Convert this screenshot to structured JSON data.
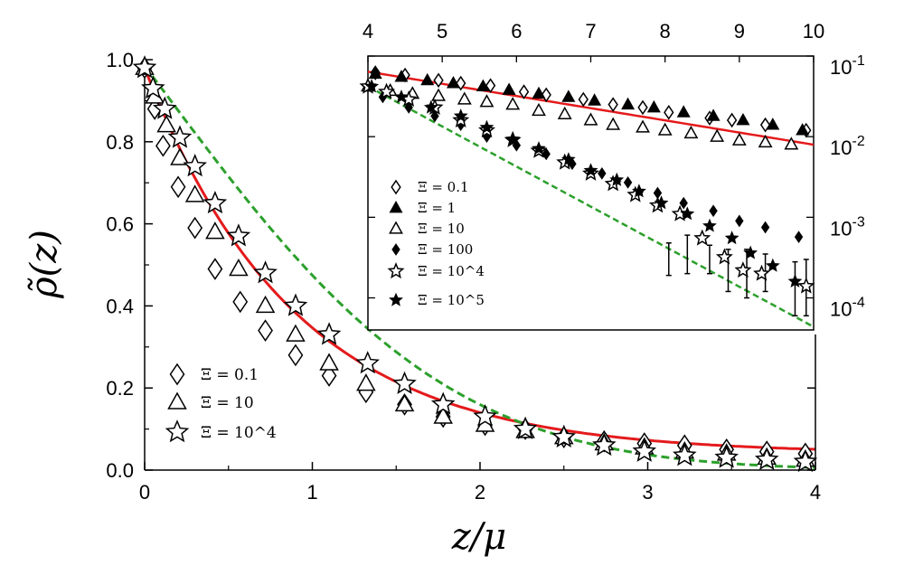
{
  "chart_data": [
    {
      "type": "scatter",
      "xlabel": "z/μ",
      "ylabel": "ρ̃(z)",
      "xlim": [
        0,
        4
      ],
      "ylim": [
        0,
        1
      ],
      "xticks": [
        "0",
        "1",
        "2",
        "3",
        "4"
      ],
      "yticks": [
        "0.0",
        "0.2",
        "0.4",
        "0.6",
        "0.8",
        "1.0"
      ],
      "legend_position": "bottom-left",
      "series": [
        {
          "name": "Ξ = 0.1",
          "marker": "diamond-open",
          "x": [
            0,
            0.06,
            0.11,
            0.2,
            0.3,
            0.42,
            0.57,
            0.72,
            0.9,
            1.1,
            1.32,
            1.55,
            1.78,
            2.03,
            2.27,
            2.5,
            2.74,
            2.98,
            3.22,
            3.47,
            3.71,
            3.94
          ],
          "y": [
            0.98,
            0.88,
            0.79,
            0.69,
            0.59,
            0.49,
            0.41,
            0.34,
            0.28,
            0.23,
            0.19,
            0.16,
            0.13,
            0.11,
            0.1,
            0.08,
            0.07,
            0.065,
            0.06,
            0.05,
            0.045,
            0.04
          ]
        },
        {
          "name": "Ξ = 10",
          "marker": "triangle-open",
          "x": [
            0,
            0.06,
            0.13,
            0.21,
            0.3,
            0.42,
            0.56,
            0.72,
            0.9,
            1.1,
            1.32,
            1.55,
            1.78,
            2.03,
            2.27,
            2.5,
            2.74,
            2.98,
            3.22,
            3.47,
            3.71,
            3.94
          ],
          "y": [
            0.98,
            0.91,
            0.84,
            0.76,
            0.67,
            0.58,
            0.49,
            0.4,
            0.33,
            0.26,
            0.21,
            0.16,
            0.13,
            0.11,
            0.095,
            0.08,
            0.065,
            0.055,
            0.045,
            0.04,
            0.03,
            0.025
          ]
        },
        {
          "name": "Ξ = 10^4",
          "marker": "star-open",
          "x": [
            0,
            0.05,
            0.12,
            0.21,
            0.3,
            0.42,
            0.56,
            0.72,
            0.9,
            1.1,
            1.33,
            1.55,
            1.78,
            2.03,
            2.27,
            2.5,
            2.74,
            2.98,
            3.22,
            3.47,
            3.71,
            3.94
          ],
          "y": [
            0.98,
            0.93,
            0.88,
            0.81,
            0.74,
            0.65,
            0.57,
            0.48,
            0.4,
            0.33,
            0.26,
            0.21,
            0.16,
            0.13,
            0.1,
            0.08,
            0.06,
            0.045,
            0.035,
            0.03,
            0.025,
            0.02
          ]
        }
      ],
      "fit_curves": [
        {
          "style": "solid",
          "color": "#e41a1c"
        },
        {
          "style": "dashed",
          "color": "#2ca02c"
        }
      ]
    },
    {
      "type": "scatter",
      "xscale": "linear",
      "yscale": "log",
      "xlim": [
        4,
        10
      ],
      "ylim": [
        4e-05,
        0.1
      ],
      "xticks": [
        "4",
        "5",
        "6",
        "7",
        "8",
        "9",
        "10"
      ],
      "ytick_bases": [
        "10",
        "10",
        "10",
        "10"
      ],
      "ytick_exponents": [
        "-1",
        "-2",
        "-3",
        "-4"
      ],
      "legend_position": "left",
      "series": [
        {
          "name": "Ξ = 0.1",
          "marker": "diamond-open",
          "x": [
            4.1,
            4.5,
            4.95,
            5.25,
            5.65,
            6.1,
            6.4,
            6.9,
            7.3,
            7.7,
            8.05,
            8.6,
            8.9,
            9.35,
            9.9
          ],
          "y": [
            0.062,
            0.058,
            0.05,
            0.046,
            0.043,
            0.036,
            0.033,
            0.029,
            0.025,
            0.023,
            0.02,
            0.017,
            0.016,
            0.014,
            0.012
          ]
        },
        {
          "name": "Ξ = 1",
          "marker": "triangle-filled",
          "x": [
            4.1,
            4.45,
            4.8,
            5.15,
            5.55,
            5.9,
            6.3,
            6.7,
            7.05,
            7.5,
            7.85,
            8.25,
            8.65,
            9.05,
            9.45,
            9.85
          ],
          "y": [
            0.06,
            0.055,
            0.05,
            0.046,
            0.042,
            0.038,
            0.034,
            0.031,
            0.028,
            0.025,
            0.023,
            0.02,
            0.018,
            0.016,
            0.014,
            0.012
          ]
        },
        {
          "name": "Ξ = 10",
          "marker": "triangle-open",
          "x": [
            4.0,
            4.3,
            4.6,
            4.95,
            5.3,
            5.6,
            5.95,
            6.3,
            6.65,
            7.0,
            7.3,
            7.7,
            8.0,
            8.35,
            8.7,
            9.0,
            9.35,
            9.7
          ],
          "y": [
            0.042,
            0.037,
            0.034,
            0.032,
            0.029,
            0.027,
            0.025,
            0.021,
            0.019,
            0.016,
            0.014,
            0.013,
            0.012,
            0.011,
            0.01,
            0.009,
            0.0085,
            0.008
          ]
        },
        {
          "name": "Ξ = 100",
          "marker": "diamond-filled",
          "x": [
            4.2,
            4.55,
            4.9,
            5.25,
            5.6,
            6.0,
            6.4,
            6.75,
            7.15,
            7.5,
            7.9,
            8.25,
            8.65,
            9.0,
            9.35,
            9.8
          ],
          "y": [
            0.031,
            0.023,
            0.018,
            0.014,
            0.01,
            0.0078,
            0.0061,
            0.0046,
            0.0035,
            0.0027,
            0.002,
            0.0015,
            0.0012,
            0.0009,
            0.00075,
            0.00057
          ]
        },
        {
          "name": "Ξ = 10^4",
          "marker": "star-open",
          "x": [
            4.0,
            4.25,
            4.55,
            4.9,
            5.25,
            5.6,
            5.95,
            6.3,
            6.65,
            7.0,
            7.3,
            7.6,
            7.9,
            8.2,
            8.5,
            8.8,
            9.05,
            9.3,
            9.9
          ],
          "y": [
            0.042,
            0.036,
            0.029,
            0.023,
            0.016,
            0.012,
            0.0091,
            0.0067,
            0.0048,
            0.0035,
            0.0026,
            0.0019,
            0.0014,
            0.0011,
            0.00055,
            0.00032,
            0.00022,
            0.0002,
            0.00014
          ]
        },
        {
          "name": "Ξ = 10^5",
          "marker": "star-filled",
          "x": [
            4.05,
            4.45,
            4.85,
            5.25,
            5.6,
            5.95,
            6.3,
            6.7,
            7.0,
            7.35,
            7.65,
            7.95,
            8.3,
            8.6,
            8.9,
            9.15,
            9.45,
            9.75
          ],
          "y": [
            0.042,
            0.031,
            0.023,
            0.018,
            0.013,
            0.0093,
            0.0071,
            0.0052,
            0.0038,
            0.0029,
            0.0021,
            0.0015,
            0.0011,
            0.00078,
            0.00055,
            0.00036,
            0.00025,
            0.00016
          ]
        }
      ],
      "error_bars": [
        {
          "x": 8.05,
          "low": 0.00019,
          "high": 0.00048
        },
        {
          "x": 8.3,
          "low": 0.0002,
          "high": 0.0006
        },
        {
          "x": 8.6,
          "low": 0.0002,
          "high": 0.00045
        },
        {
          "x": 8.85,
          "low": 0.00012,
          "high": 0.0004
        },
        {
          "x": 9.1,
          "low": 0.0001,
          "high": 0.0004
        },
        {
          "x": 9.35,
          "low": 0.00012,
          "high": 0.00035
        },
        {
          "x": 9.75,
          "low": 6e-05,
          "high": 0.00028
        },
        {
          "x": 9.9,
          "low": 6e-05,
          "high": 0.0003
        }
      ],
      "fit_curves": [
        {
          "style": "solid",
          "color": "#e41a1c"
        },
        {
          "style": "dashed",
          "color": "#2ca02c"
        }
      ]
    }
  ]
}
